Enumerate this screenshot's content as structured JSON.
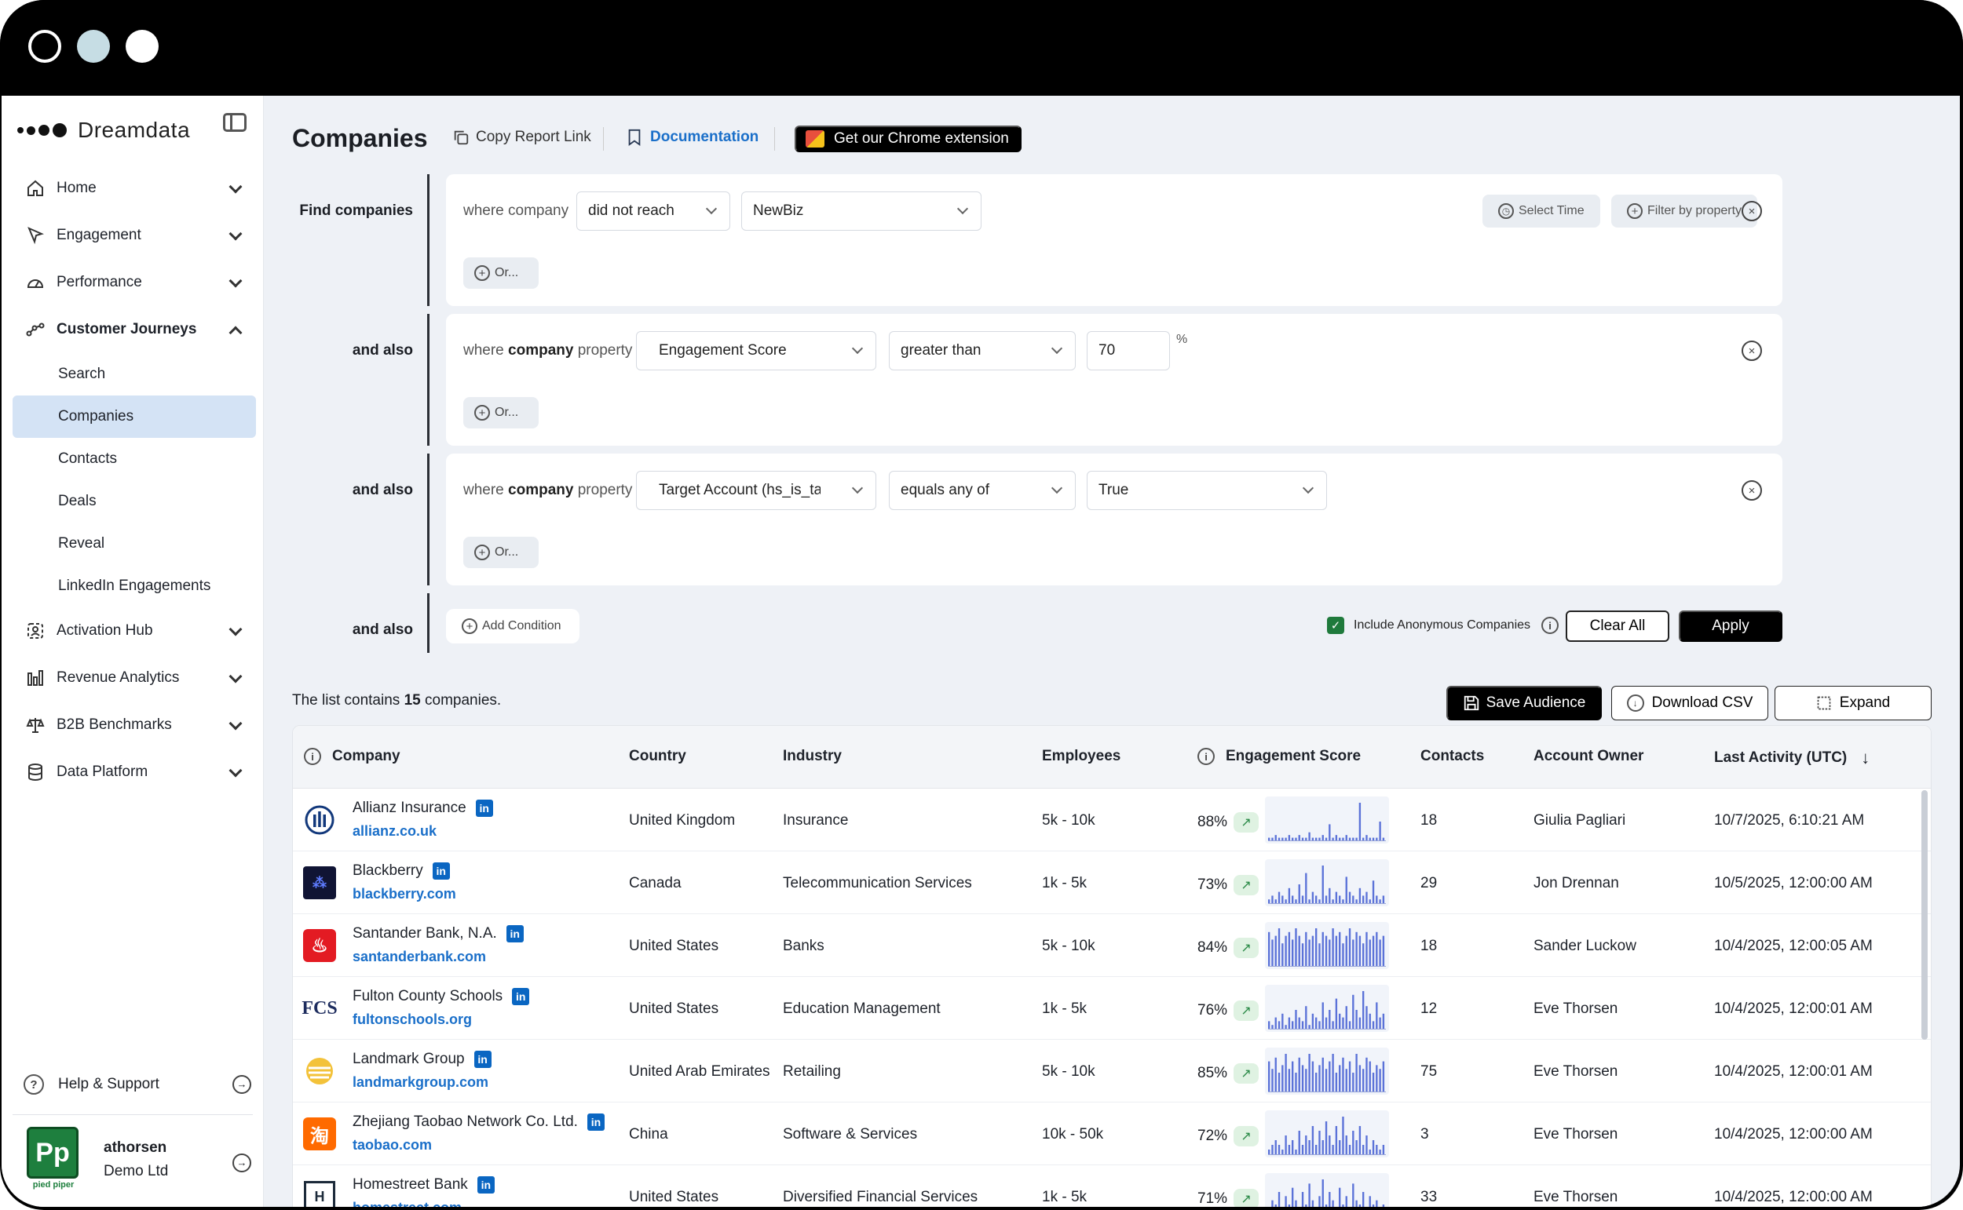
{
  "brand": {
    "name": "Dreamdata"
  },
  "sidebar": {
    "items": [
      {
        "label": "Home",
        "icon": "home-icon"
      },
      {
        "label": "Engagement",
        "icon": "cursor-icon"
      },
      {
        "label": "Performance",
        "icon": "gauge-icon"
      },
      {
        "label": "Customer Journeys",
        "icon": "journey-icon"
      },
      {
        "label": "Activation Hub",
        "icon": "activation-icon"
      },
      {
        "label": "Revenue Analytics",
        "icon": "bar-chart-icon"
      },
      {
        "label": "B2B Benchmarks",
        "icon": "scale-icon"
      },
      {
        "label": "Data Platform",
        "icon": "database-icon"
      }
    ],
    "sub_items": [
      "Search",
      "Companies",
      "Contacts",
      "Deals",
      "Reveal",
      "LinkedIn Engagements"
    ],
    "help": "Help & Support",
    "user": {
      "name": "athorsen",
      "org": "Demo Ltd",
      "avatar_text": "Pp",
      "avatar_caption": "pied piper"
    }
  },
  "header": {
    "title": "Companies",
    "copy_link": "Copy Report Link",
    "documentation": "Documentation",
    "chrome_extension": "Get our Chrome extension"
  },
  "filters": {
    "find_label": "Find companies",
    "and_also": "and also",
    "or_label": "Or...",
    "select_time": "Select Time",
    "filter_by_property": "Filter by property",
    "rows": [
      {
        "where_prefix": "where company",
        "where_bold": "",
        "where_suffix": "",
        "op1": "did not reach",
        "op2": "NewBiz",
        "op3": ""
      },
      {
        "where_prefix": "where ",
        "where_bold": "company",
        "where_suffix": " property",
        "op1": "Engagement Score",
        "op2": "greater than",
        "op3": "70",
        "unit": "%"
      },
      {
        "where_prefix": "where ",
        "where_bold": "company",
        "where_suffix": " property",
        "op1": "Target Account (hs_is_target_account)",
        "op2": "equals any of",
        "op3": "True"
      }
    ],
    "add_condition": "Add Condition",
    "include_anonymous": "Include Anonymous Companies",
    "clear_all": "Clear All",
    "apply": "Apply"
  },
  "list": {
    "count_prefix": "The list contains ",
    "count": "15",
    "count_suffix": " companies.",
    "save_audience": "Save Audience",
    "download_csv": "Download CSV",
    "expand": "Expand"
  },
  "table": {
    "columns": [
      "Company",
      "Country",
      "Industry",
      "Employees",
      "Engagement Score",
      "Contacts",
      "Account Owner",
      "Last Activity (UTC)"
    ],
    "rows": [
      {
        "name": "Allianz Insurance",
        "domain": "allianz.co.uk",
        "country": "United Kingdom",
        "industry": "Insurance",
        "employees": "5k - 10k",
        "score": "88%",
        "contacts": "18",
        "owner": "Giulia Pagliari",
        "last": "10/7/2025, 6:10:21 AM",
        "logo": "allianz",
        "color": "#12387b",
        "spark": [
          1,
          1,
          2,
          1,
          1,
          1,
          2,
          1,
          1,
          2,
          1,
          1,
          3,
          1,
          1,
          1,
          2,
          1,
          6,
          1,
          2,
          1,
          1,
          2,
          1,
          1,
          1,
          14,
          1,
          2,
          1,
          1,
          1,
          7,
          1
        ]
      },
      {
        "name": "Blackberry",
        "domain": "blackberry.com",
        "country": "Canada",
        "industry": "Telecommunication Services",
        "employees": "1k - 5k",
        "score": "73%",
        "contacts": "29",
        "owner": "Jon Drennan",
        "last": "10/5/2025, 12:00:00 AM",
        "logo": "blackberry",
        "color": "#101434",
        "spark": [
          1,
          2,
          1,
          3,
          2,
          1,
          4,
          2,
          1,
          5,
          2,
          8,
          1,
          3,
          2,
          1,
          10,
          2,
          4,
          1,
          3,
          2,
          1,
          7,
          3,
          2,
          1,
          4,
          2,
          3,
          1,
          6,
          2,
          1,
          2
        ]
      },
      {
        "name": "Santander Bank, N.A.",
        "domain": "santanderbank.com",
        "country": "United States",
        "industry": "Banks",
        "employees": "5k - 10k",
        "score": "84%",
        "contacts": "18",
        "owner": "Sander Luckow",
        "last": "10/4/2025, 12:00:05 AM",
        "logo": "santander",
        "color": "#e31b23",
        "spark": [
          9,
          7,
          8,
          10,
          6,
          8,
          9,
          7,
          10,
          8,
          6,
          9,
          7,
          8,
          10,
          6,
          9,
          8,
          7,
          10,
          8,
          9,
          6,
          8,
          10,
          7,
          9,
          8,
          6,
          9,
          7,
          8,
          9,
          7,
          8
        ]
      },
      {
        "name": "Fulton County Schools",
        "domain": "fultonschools.org",
        "country": "United States",
        "industry": "Education Management",
        "employees": "1k - 5k",
        "score": "76%",
        "contacts": "12",
        "owner": "Eve Thorsen",
        "last": "10/4/2025, 12:00:01 AM",
        "logo": "fcs",
        "color": "#1d2c5e",
        "spark": [
          2,
          1,
          3,
          2,
          4,
          1,
          3,
          2,
          5,
          3,
          2,
          6,
          1,
          4,
          3,
          2,
          7,
          3,
          5,
          2,
          8,
          4,
          3,
          6,
          2,
          9,
          5,
          3,
          10,
          6,
          4,
          2,
          7,
          3,
          4
        ]
      },
      {
        "name": "Landmark Group",
        "domain": "landmarkgroup.com",
        "country": "United Arab Emirates",
        "industry": "Retailing",
        "employees": "5k - 10k",
        "score": "85%",
        "contacts": "75",
        "owner": "Eve Thorsen",
        "last": "10/4/2025, 12:00:01 AM",
        "logo": "landmark",
        "color": "#e3ad1b",
        "spark": [
          8,
          6,
          9,
          5,
          7,
          10,
          6,
          8,
          5,
          9,
          7,
          6,
          10,
          8,
          5,
          7,
          9,
          6,
          8,
          10,
          5,
          7,
          9,
          6,
          8,
          5,
          10,
          7,
          6,
          9,
          8,
          5,
          7,
          6,
          8
        ]
      },
      {
        "name": "Zhejiang Taobao Network Co. Ltd.",
        "domain": "taobao.com",
        "country": "China",
        "industry": "Software & Services",
        "employees": "10k - 50k",
        "score": "72%",
        "contacts": "3",
        "owner": "Eve Thorsen",
        "last": "10/4/2025, 12:00:00 AM",
        "logo": "taobao",
        "color": "#ff6a00",
        "spark": [
          1,
          2,
          3,
          2,
          1,
          4,
          2,
          3,
          1,
          5,
          2,
          4,
          3,
          6,
          2,
          5,
          3,
          7,
          4,
          2,
          6,
          3,
          8,
          4,
          2,
          5,
          3,
          6,
          2,
          4,
          1,
          3,
          2,
          1,
          2
        ]
      },
      {
        "name": "Homestreet Bank",
        "domain": "homestreet.com",
        "country": "United States",
        "industry": "Diversified Financial Services",
        "employees": "1k - 5k",
        "score": "71%",
        "contacts": "33",
        "owner": "Eve Thorsen",
        "last": "10/4/2025, 12:00:00 AM",
        "logo": "homestreet",
        "color": "#1c2a3a",
        "spark": [
          2,
          4,
          3,
          6,
          2,
          5,
          3,
          7,
          4,
          2,
          6,
          3,
          8,
          4,
          2,
          5,
          9,
          3,
          6,
          4,
          2,
          7,
          3,
          5,
          2,
          8,
          4,
          3,
          6,
          2,
          5,
          3,
          4,
          2,
          3
        ]
      }
    ]
  },
  "colors": {
    "accent": "#1a6fc9",
    "active_nav": "#d4e3f5",
    "spark_bar": "#5b72d8",
    "check": "#1f7a3c",
    "linkedin": "#0a66c2"
  }
}
